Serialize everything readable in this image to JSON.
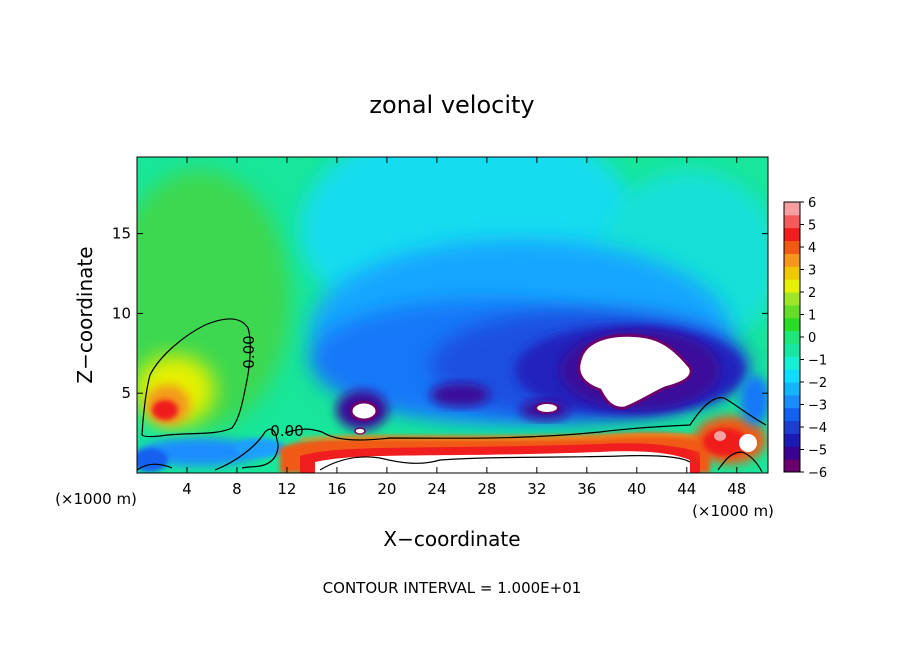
{
  "chart_data": {
    "type": "heatmap",
    "title": "zonal velocity",
    "xlabel": "X−coordinate",
    "ylabel": "Z−coordinate",
    "x_unit_left": "(×1000 m)",
    "x_unit_right": "(×1000 m)",
    "footer": "CONTOUR INTERVAL = 1.000E+01",
    "xlim": [
      0,
      50.5
    ],
    "ylim": [
      0,
      19.8
    ],
    "xticks": [
      4,
      8,
      12,
      16,
      20,
      24,
      28,
      32,
      36,
      40,
      44,
      48
    ],
    "xtick_labels": [
      "4",
      "8",
      "12",
      "16",
      "20",
      "24",
      "28",
      "32",
      "36",
      "40",
      "44",
      "48"
    ],
    "yticks": [
      5,
      10,
      15
    ],
    "ytick_labels": [
      "5",
      "10",
      "15"
    ],
    "contour_labels": [
      {
        "text": "0.00",
        "x": 8.6,
        "z": 7.8,
        "rotate": -90
      },
      {
        "text": "0.00",
        "x": 12.0,
        "z": 2.7,
        "rotate": 0
      }
    ],
    "colorbar": {
      "vmin": -6,
      "vmax": 6,
      "ticks": [
        6,
        5,
        4,
        3,
        2,
        1,
        0,
        -1,
        -2,
        -3,
        -4,
        -5,
        -6
      ],
      "tick_labels": [
        "6",
        "5",
        "4",
        "3",
        "2",
        "1",
        "0",
        "−1",
        "−2",
        "−3",
        "−4",
        "−5",
        "−6"
      ],
      "colors": [
        "#6a006e",
        "#3a0090",
        "#1a1ab4",
        "#1e3ed2",
        "#1460f0",
        "#1a8cff",
        "#14b4ff",
        "#10dcff",
        "#16f0d2",
        "#16e6a0",
        "#1ee678",
        "#28dc28",
        "#64dc28",
        "#a0e628",
        "#e6f000",
        "#f0c800",
        "#f5961e",
        "#f05a14",
        "#f01e1e",
        "#f55a5a",
        "#f5a0a0"
      ]
    },
    "features": [
      {
        "name": "strong negative core",
        "x": 38.5,
        "z": 7.0,
        "value": -6
      },
      {
        "name": "positive jet near surface",
        "x": 30,
        "z": 2.0,
        "value": 5
      },
      {
        "name": "positive region left",
        "x": 3,
        "z": 4.0,
        "value": 4
      }
    ]
  }
}
